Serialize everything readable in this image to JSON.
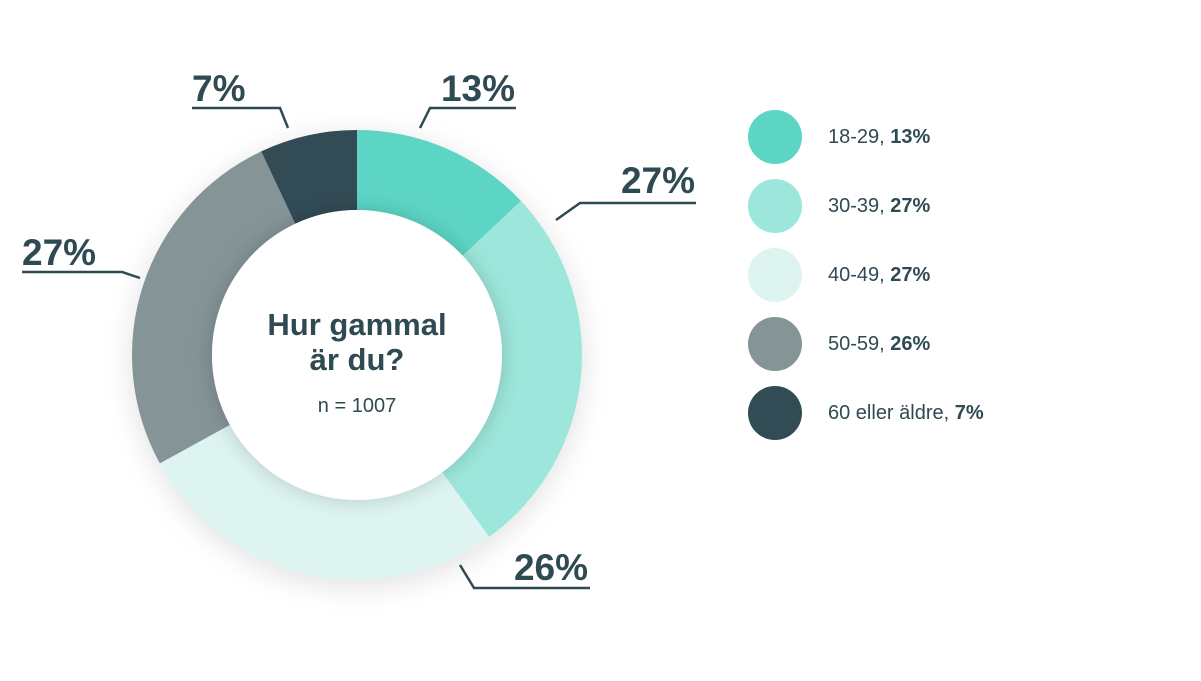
{
  "chart_data": {
    "type": "pie",
    "title": "Hur gammal är du?",
    "subtitle": "n = 1007",
    "categories": [
      "18-29",
      "30-39",
      "40-49",
      "50-59",
      "60 eller äldre"
    ],
    "values": [
      13,
      27,
      27,
      26,
      7
    ],
    "value_labels": [
      "13%",
      "27%",
      "27%",
      "26%",
      "7%"
    ],
    "colors": [
      "#5dd5c5",
      "#9de6db",
      "#ddf4f1",
      "#849497",
      "#314c55"
    ],
    "legend_position": "right",
    "donut": true
  },
  "legend": {
    "items": [
      {
        "label": "18-29,",
        "value": "13%",
        "color": "#5dd5c5"
      },
      {
        "label": "30-39,",
        "value": "27%",
        "color": "#9de6db"
      },
      {
        "label": "40-49,",
        "value": "27%",
        "color": "#ddf4f1"
      },
      {
        "label": "50-59,",
        "value": "26%",
        "color": "#849497"
      },
      {
        "label": "60 eller äldre,",
        "value": "7%",
        "color": "#314c55"
      }
    ]
  }
}
